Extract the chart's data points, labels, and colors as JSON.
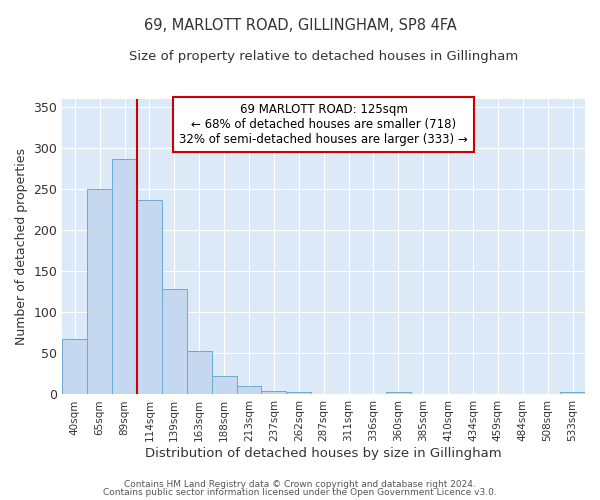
{
  "title1": "69, MARLOTT ROAD, GILLINGHAM, SP8 4FA",
  "title2": "Size of property relative to detached houses in Gillingham",
  "xlabel": "Distribution of detached houses by size in Gillingham",
  "ylabel": "Number of detached properties",
  "bin_labels": [
    "40sqm",
    "65sqm",
    "89sqm",
    "114sqm",
    "139sqm",
    "163sqm",
    "188sqm",
    "213sqm",
    "237sqm",
    "262sqm",
    "287sqm",
    "311sqm",
    "336sqm",
    "360sqm",
    "385sqm",
    "410sqm",
    "434sqm",
    "459sqm",
    "484sqm",
    "508sqm",
    "533sqm"
  ],
  "bar_heights": [
    68,
    250,
    287,
    237,
    128,
    53,
    22,
    10,
    4,
    3,
    0,
    0,
    0,
    3,
    0,
    0,
    0,
    0,
    0,
    0,
    3
  ],
  "bar_color": "#c5d8f0",
  "bar_edge_color": "#6aaad4",
  "vline_x": 2.5,
  "vline_color": "#cc0000",
  "annotation_text": "69 MARLOTT ROAD: 125sqm\n← 68% of detached houses are smaller (718)\n32% of semi-detached houses are larger (333) →",
  "annotation_box_color": "#ffffff",
  "annotation_box_edge": "#cc0000",
  "ylim": [
    0,
    360
  ],
  "yticks": [
    0,
    50,
    100,
    150,
    200,
    250,
    300,
    350
  ],
  "fig_background": "#ffffff",
  "plot_background": "#dce9f7",
  "grid_color": "#ffffff",
  "footnote1": "Contains HM Land Registry data © Crown copyright and database right 2024.",
  "footnote2": "Contains public sector information licensed under the Open Government Licence v3.0."
}
